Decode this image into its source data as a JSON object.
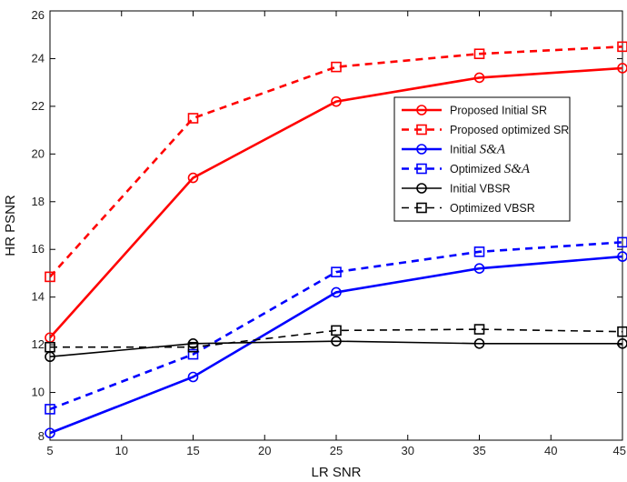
{
  "chart_data": {
    "type": "line",
    "xlabel": "LR SNR",
    "ylabel": "HR PSNR",
    "xlim": [
      5,
      45
    ],
    "ylim": [
      8,
      26
    ],
    "xticks": [
      5,
      10,
      15,
      20,
      25,
      30,
      35,
      40,
      45
    ],
    "yticks": [
      8,
      10,
      12,
      14,
      16,
      18,
      20,
      22,
      24,
      26
    ],
    "x": [
      5,
      15,
      25,
      35,
      45
    ],
    "grid": false,
    "legend_position": "right",
    "series": [
      {
        "name": "Proposed Initial SR",
        "name_prefix": "Proposed Initial SR",
        "name_italic": "",
        "color": "#ff0000",
        "dash": "solid",
        "marker": "circle",
        "values": [
          12.3,
          19.0,
          22.2,
          23.2,
          23.6
        ]
      },
      {
        "name": "Proposed optimized SR",
        "name_prefix": "Proposed optimized SR",
        "name_italic": "",
        "color": "#ff0000",
        "dash": "dashed",
        "marker": "square",
        "values": [
          14.85,
          21.5,
          23.65,
          24.2,
          24.5
        ]
      },
      {
        "name": "Initial S&A",
        "name_prefix": "Initial ",
        "name_italic": "S&A",
        "color": "#0000ff",
        "dash": "solid",
        "marker": "circle",
        "values": [
          8.3,
          10.65,
          14.2,
          15.2,
          15.7
        ]
      },
      {
        "name": "Optimized S&A",
        "name_prefix": "Optimized ",
        "name_italic": "S&A",
        "color": "#0000ff",
        "dash": "dashed",
        "marker": "square",
        "values": [
          9.3,
          11.6,
          15.05,
          15.9,
          16.3
        ]
      },
      {
        "name": "Initial VBSR",
        "name_prefix": "Initial VBSR",
        "name_italic": "",
        "color": "#000000",
        "dash": "solid",
        "marker": "circle",
        "values": [
          11.5,
          12.05,
          12.15,
          12.05,
          12.05
        ]
      },
      {
        "name": "Optimized VBSR",
        "name_prefix": "Optimized VBSR",
        "name_italic": "",
        "color": "#000000",
        "dash": "dashed",
        "marker": "square",
        "values": [
          11.9,
          11.9,
          12.6,
          12.65,
          12.55
        ]
      }
    ]
  }
}
